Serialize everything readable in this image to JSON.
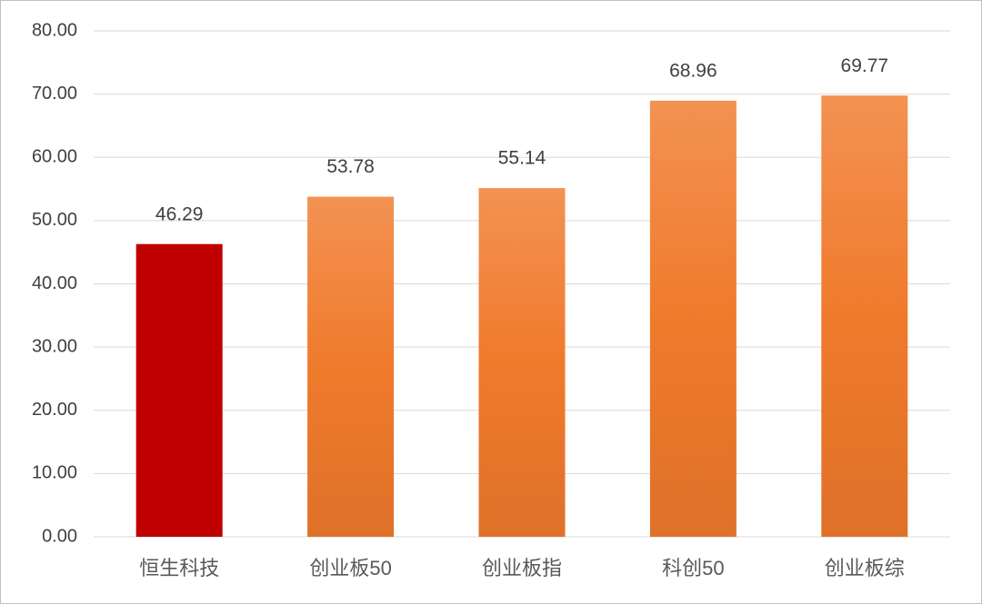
{
  "chart_data": {
    "type": "bar",
    "categories": [
      "恒生科技",
      "创业板50",
      "创业板指",
      "科创50",
      "创业板综"
    ],
    "values": [
      46.29,
      53.78,
      55.14,
      68.96,
      69.77
    ],
    "colors": [
      "#c00000",
      "#f07a2c",
      "#f07a2c",
      "#f07a2c",
      "#f07a2c"
    ],
    "ylim": [
      0,
      80
    ],
    "yticks": [
      {
        "value": 0,
        "label": "0.00"
      },
      {
        "value": 10,
        "label": "10.00"
      },
      {
        "value": 20,
        "label": "20.00"
      },
      {
        "value": 30,
        "label": "30.00"
      },
      {
        "value": 40,
        "label": "40.00"
      },
      {
        "value": 50,
        "label": "50.00"
      },
      {
        "value": 60,
        "label": "60.00"
      },
      {
        "value": 70,
        "label": "70.00"
      },
      {
        "value": 80,
        "label": "80.00"
      }
    ],
    "grid": true
  }
}
